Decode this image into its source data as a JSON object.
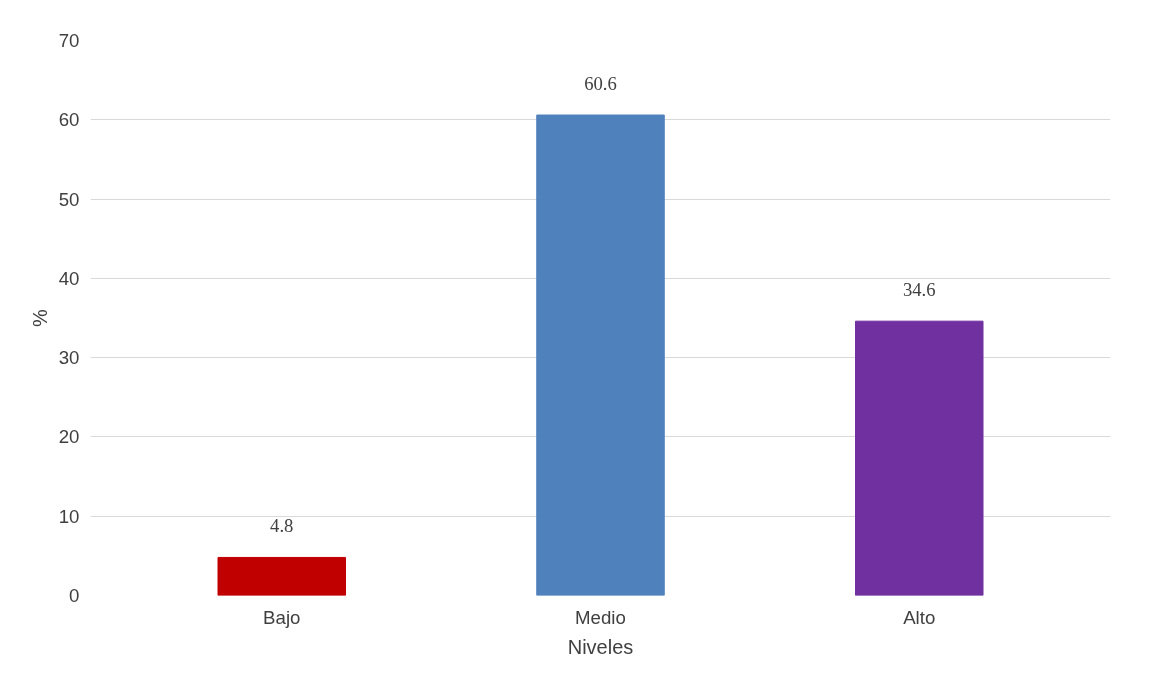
{
  "chart_data": {
    "type": "bar",
    "xlabel": "Niveles",
    "ylabel": "%",
    "categories": [
      "Bajo",
      "Medio",
      "Alto"
    ],
    "values": [
      4.8,
      60.6,
      34.6
    ],
    "colors": [
      "#c00000",
      "#4f81bd",
      "#7030a0"
    ],
    "ylim": [
      0,
      70
    ],
    "yticks": [
      0,
      10,
      20,
      30,
      40,
      50,
      60,
      70
    ],
    "grid": "y",
    "data_labels": true
  }
}
